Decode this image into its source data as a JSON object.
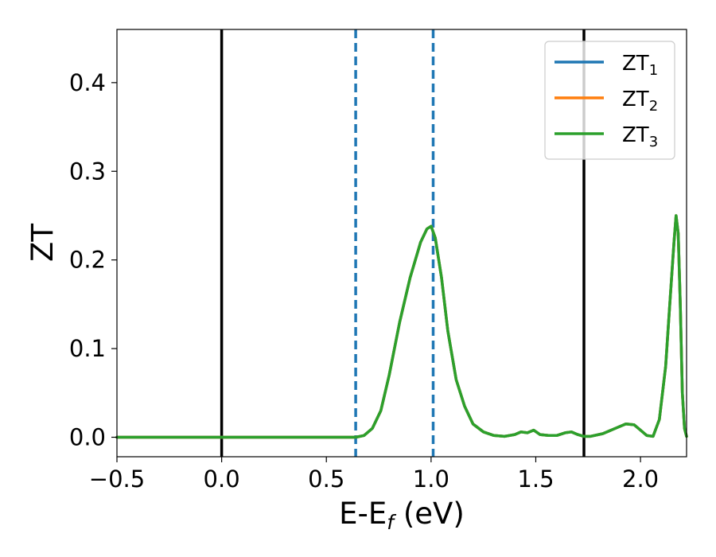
{
  "chart_data": {
    "type": "line",
    "xlabel": "E-E_f (eV)",
    "xlabel_main": "E-E",
    "xlabel_sub": "f",
    "xlabel_suffix": " (eV)",
    "ylabel": "ZT",
    "xlim": [
      -0.5,
      2.22
    ],
    "ylim": [
      -0.022,
      0.46
    ],
    "xticks": [
      -0.5,
      0.0,
      0.5,
      1.0,
      1.5,
      2.0
    ],
    "xtick_labels": [
      "−0.5",
      "0.0",
      "0.5",
      "1.0",
      "1.5",
      "2.0"
    ],
    "yticks": [
      0.0,
      0.1,
      0.2,
      0.3,
      0.4
    ],
    "ytick_labels": [
      "0.0",
      "0.1",
      "0.2",
      "0.3",
      "0.4"
    ],
    "grid": false,
    "legend_position": "top-right",
    "vlines": [
      {
        "x": 0.0,
        "style": "solid",
        "color": "#000000"
      },
      {
        "x": 1.73,
        "style": "solid",
        "color": "#000000"
      },
      {
        "x": 0.64,
        "style": "dashed",
        "color": "#1f77b4"
      },
      {
        "x": 1.01,
        "style": "dashed",
        "color": "#1f77b4"
      }
    ],
    "x": [
      -0.5,
      0.0,
      0.5,
      0.64,
      0.68,
      0.72,
      0.76,
      0.8,
      0.85,
      0.9,
      0.95,
      0.98,
      1.0,
      1.02,
      1.05,
      1.08,
      1.12,
      1.16,
      1.2,
      1.25,
      1.3,
      1.35,
      1.4,
      1.43,
      1.46,
      1.49,
      1.52,
      1.56,
      1.6,
      1.64,
      1.67,
      1.7,
      1.73,
      1.76,
      1.82,
      1.88,
      1.93,
      1.97,
      2.0,
      2.03,
      2.06,
      2.09,
      2.12,
      2.14,
      2.16,
      2.17,
      2.18,
      2.19,
      2.2,
      2.21,
      2.22
    ],
    "series": [
      {
        "name": "ZT_1",
        "label_main": "ZT",
        "label_sub": "1",
        "color": "#1f77b4",
        "values": [
          0.0,
          0.0,
          0.0,
          0.0,
          0.002,
          0.01,
          0.03,
          0.07,
          0.13,
          0.18,
          0.22,
          0.235,
          0.238,
          0.225,
          0.18,
          0.12,
          0.065,
          0.035,
          0.015,
          0.006,
          0.002,
          0.001,
          0.003,
          0.006,
          0.005,
          0.008,
          0.003,
          0.002,
          0.002,
          0.005,
          0.006,
          0.003,
          0.001,
          0.001,
          0.004,
          0.01,
          0.015,
          0.014,
          0.008,
          0.002,
          0.001,
          0.02,
          0.08,
          0.15,
          0.22,
          0.25,
          0.23,
          0.15,
          0.05,
          0.01,
          0.001
        ]
      },
      {
        "name": "ZT_2",
        "label_main": "ZT",
        "label_sub": "2",
        "color": "#ff7f0e",
        "values": [
          0.0,
          0.0,
          0.0,
          0.0,
          0.002,
          0.01,
          0.03,
          0.07,
          0.13,
          0.18,
          0.22,
          0.235,
          0.238,
          0.225,
          0.18,
          0.12,
          0.065,
          0.035,
          0.015,
          0.006,
          0.002,
          0.001,
          0.003,
          0.006,
          0.005,
          0.008,
          0.003,
          0.002,
          0.002,
          0.005,
          0.006,
          0.003,
          0.001,
          0.001,
          0.004,
          0.01,
          0.015,
          0.014,
          0.008,
          0.002,
          0.001,
          0.02,
          0.08,
          0.15,
          0.22,
          0.25,
          0.23,
          0.15,
          0.05,
          0.01,
          0.001
        ]
      },
      {
        "name": "ZT_3",
        "label_main": "ZT",
        "label_sub": "3",
        "color": "#2ca02c",
        "values": [
          0.0,
          0.0,
          0.0,
          0.0,
          0.002,
          0.01,
          0.03,
          0.07,
          0.13,
          0.18,
          0.22,
          0.235,
          0.238,
          0.225,
          0.18,
          0.12,
          0.065,
          0.035,
          0.015,
          0.006,
          0.002,
          0.001,
          0.003,
          0.006,
          0.005,
          0.008,
          0.003,
          0.002,
          0.002,
          0.005,
          0.006,
          0.003,
          0.001,
          0.001,
          0.004,
          0.01,
          0.015,
          0.014,
          0.008,
          0.002,
          0.001,
          0.02,
          0.08,
          0.15,
          0.22,
          0.25,
          0.23,
          0.15,
          0.05,
          0.01,
          0.001
        ]
      }
    ]
  }
}
